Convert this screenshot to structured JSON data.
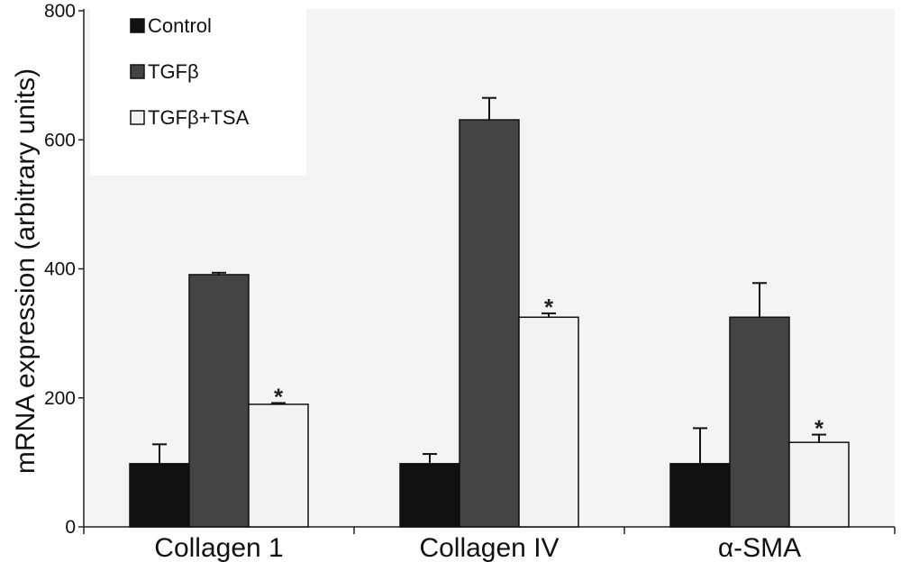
{
  "chart_data": {
    "type": "bar",
    "title": "",
    "xlabel": "",
    "ylabel": "mRNA expression (arbitrary units)",
    "ylim": [
      0,
      800
    ],
    "yticks": [
      0,
      200,
      400,
      600,
      800
    ],
    "categories": [
      "Collagen 1",
      "Collagen IV",
      "α-SMA"
    ],
    "series": [
      {
        "name": "Control",
        "color": "#111111",
        "values": [
          98,
          98,
          98
        ],
        "errors": [
          30,
          15,
          55
        ],
        "significant": [
          false,
          false,
          false
        ]
      },
      {
        "name": "TGFβ",
        "color": "#444444",
        "values": [
          391,
          631,
          325
        ],
        "errors": [
          3,
          34,
          53
        ],
        "significant": [
          false,
          false,
          false
        ]
      },
      {
        "name": "TGFβ+TSA",
        "color": "#f2f2f2",
        "values": [
          190,
          325,
          131
        ],
        "errors": [
          2,
          6,
          12
        ],
        "significant": [
          true,
          true,
          true
        ]
      }
    ],
    "significance_marker": "*",
    "legend": {
      "position": "top-left",
      "entries": [
        "Control",
        "TGFβ",
        "TGFβ+TSA"
      ]
    },
    "grid": false
  }
}
